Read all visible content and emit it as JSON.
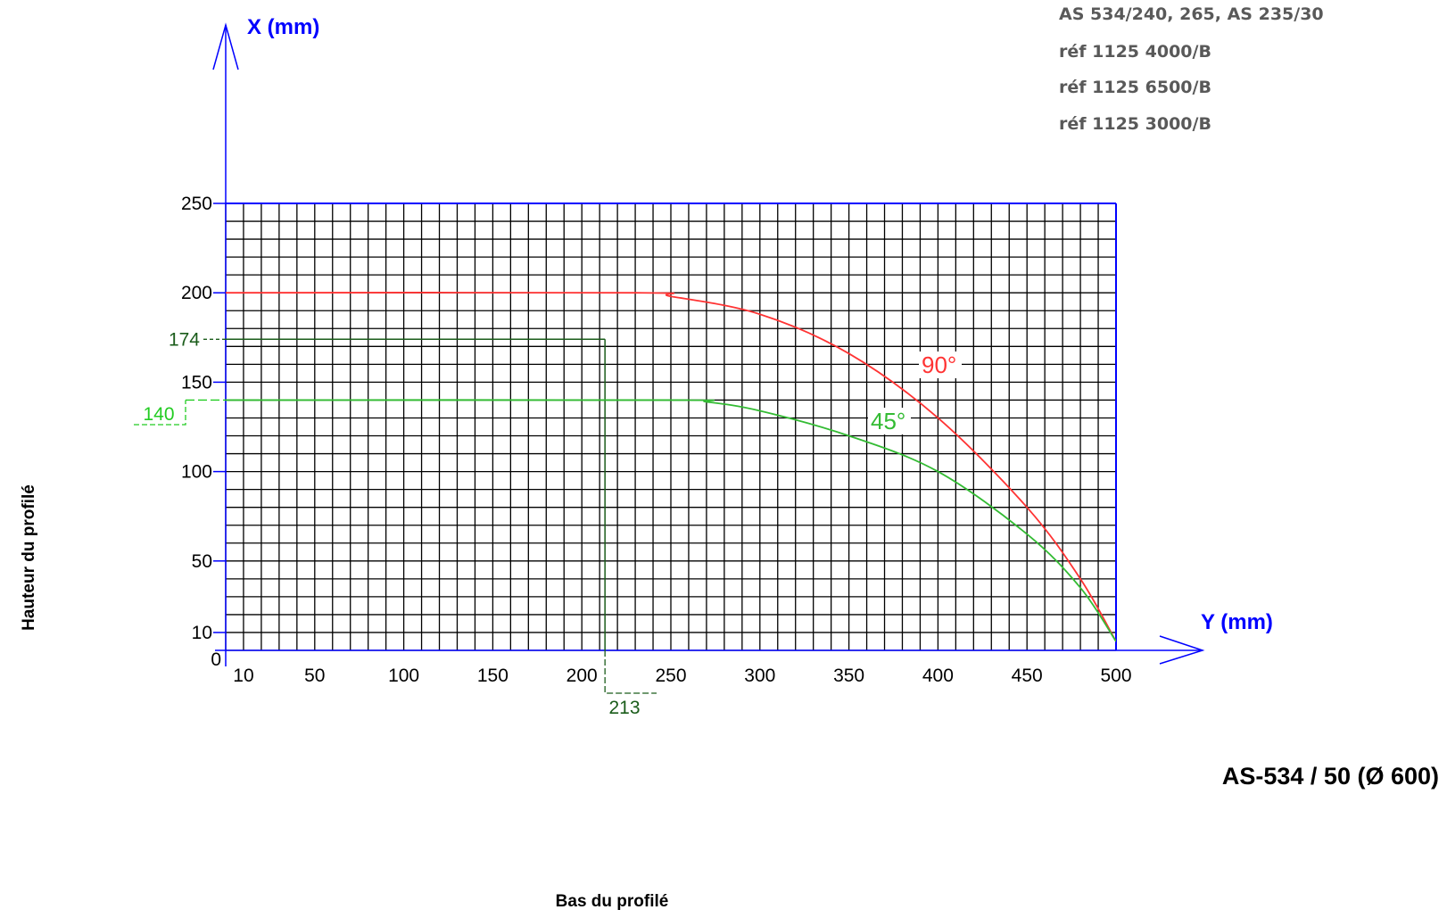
{
  "references": [
    "AS 534/240, 265, AS 235/30",
    "réf 1125 4000/B",
    "réf 1125 6500/B",
    "réf 1125 3000/B"
  ],
  "model_title": "AS-534 / 50 (Ø 600)",
  "side_label_y": "Hauteur du profilé",
  "side_label_x": "Bas du profilé",
  "chart_data": {
    "type": "line",
    "xlabel": "Y (mm)",
    "ylabel": "X (mm)",
    "xlim": [
      0,
      500
    ],
    "ylim": [
      0,
      250
    ],
    "x_ticks": [
      10,
      50,
      100,
      150,
      200,
      250,
      300,
      350,
      400,
      450,
      500
    ],
    "y_ticks": [
      0,
      10,
      50,
      100,
      150,
      200,
      250
    ],
    "grid": true,
    "grid_step_x": 10,
    "grid_step_y": 10,
    "series": [
      {
        "name": "90°",
        "color": "#ff3333",
        "x": [
          0,
          230,
          250,
          300,
          350,
          400,
          450,
          480,
          500
        ],
        "y": [
          200,
          200,
          198,
          188,
          166,
          130,
          80,
          40,
          5
        ]
      },
      {
        "name": "45°",
        "color": "#33bb33",
        "x": [
          0,
          250,
          270,
          300,
          350,
          400,
          450,
          480,
          500
        ],
        "y": [
          140,
          140,
          139,
          134,
          120,
          100,
          65,
          35,
          5
        ]
      }
    ],
    "annotations": [
      {
        "axis": "y",
        "value": 174,
        "label": "174",
        "color": "#1a5c1a"
      },
      {
        "axis": "y",
        "value": 140,
        "label": "140",
        "color": "#22cc22"
      },
      {
        "axis": "x",
        "value": 213,
        "label": "213",
        "color": "#1a5c1a"
      }
    ]
  }
}
